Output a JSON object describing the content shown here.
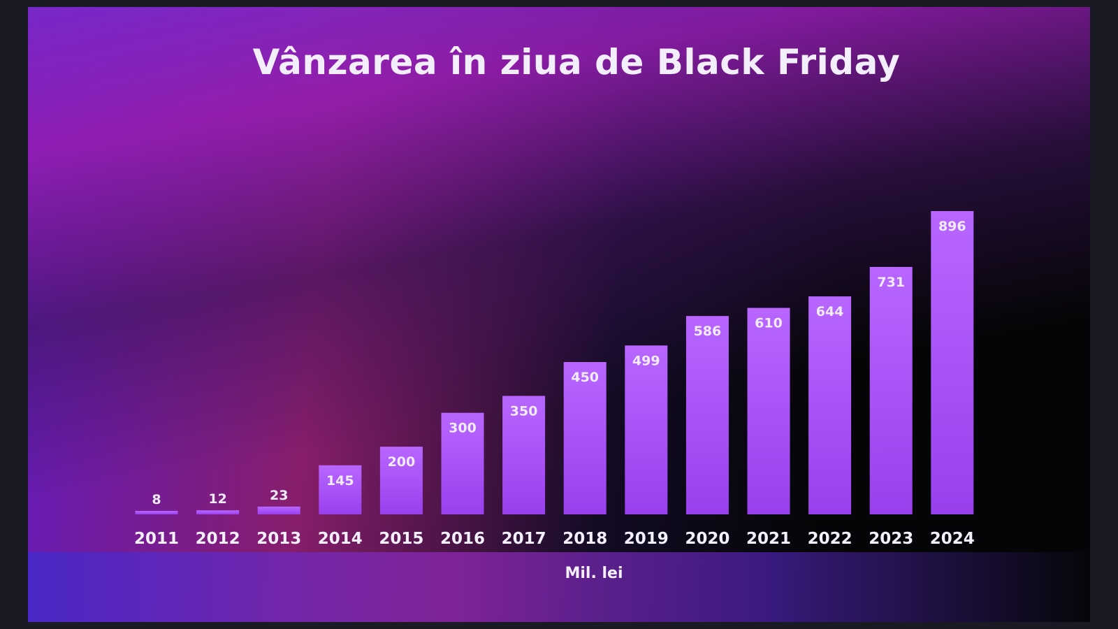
{
  "chart_data": {
    "type": "bar",
    "title": "Vânzarea în ziua de Black Friday",
    "unit_label": "Mil. lei",
    "categories": [
      "2011",
      "2012",
      "2013",
      "2014",
      "2015",
      "2016",
      "2017",
      "2018",
      "2019",
      "2020",
      "2021",
      "2022",
      "2023",
      "2024"
    ],
    "values": [
      8,
      12,
      23,
      145,
      200,
      300,
      350,
      450,
      499,
      586,
      610,
      644,
      731,
      896
    ],
    "ylim": [
      0,
      896
    ],
    "grid": false,
    "bar_color": "#a64dff"
  }
}
